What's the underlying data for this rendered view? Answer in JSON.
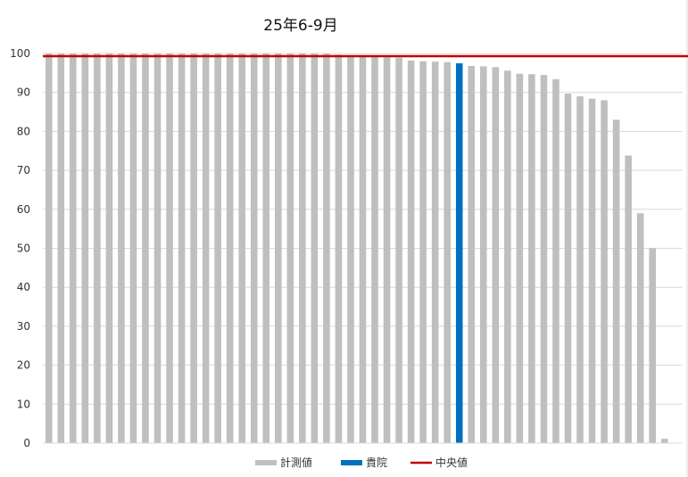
{
  "chart_data": {
    "type": "bar",
    "title": "25年6-9月",
    "xlabel": "",
    "ylabel": "",
    "ylim": [
      0,
      100
    ],
    "yticks": [
      0,
      10,
      20,
      30,
      40,
      50,
      60,
      70,
      80,
      90,
      100
    ],
    "grid": true,
    "legend_position": "bottom",
    "colors": {
      "measured": "#bfbfbf",
      "highlight": "#0070c0",
      "median": "#c00000",
      "grid": "#d9d9d9"
    },
    "values": [
      100,
      100,
      100,
      100,
      100,
      100,
      100,
      100,
      100,
      100,
      100,
      100,
      100,
      100,
      100,
      100,
      100,
      100,
      100,
      100,
      100,
      100,
      100,
      100,
      99.7,
      99.5,
      99.3,
      99.1,
      99.0,
      98.9,
      98.2,
      98.0,
      97.9,
      97.8,
      97.5,
      96.8,
      96.7,
      96.5,
      95.6,
      94.8,
      94.7,
      94.5,
      93.4,
      89.7,
      89.0,
      88.4,
      88.0,
      83.0,
      73.8,
      59.0,
      50.0,
      1.1,
      0
    ],
    "highlight_index": 34,
    "median": 99.3,
    "legend": [
      {
        "key": "measured",
        "label": "計測値"
      },
      {
        "key": "highlight",
        "label": "貴院"
      },
      {
        "key": "median",
        "label": "中央値"
      }
    ]
  }
}
